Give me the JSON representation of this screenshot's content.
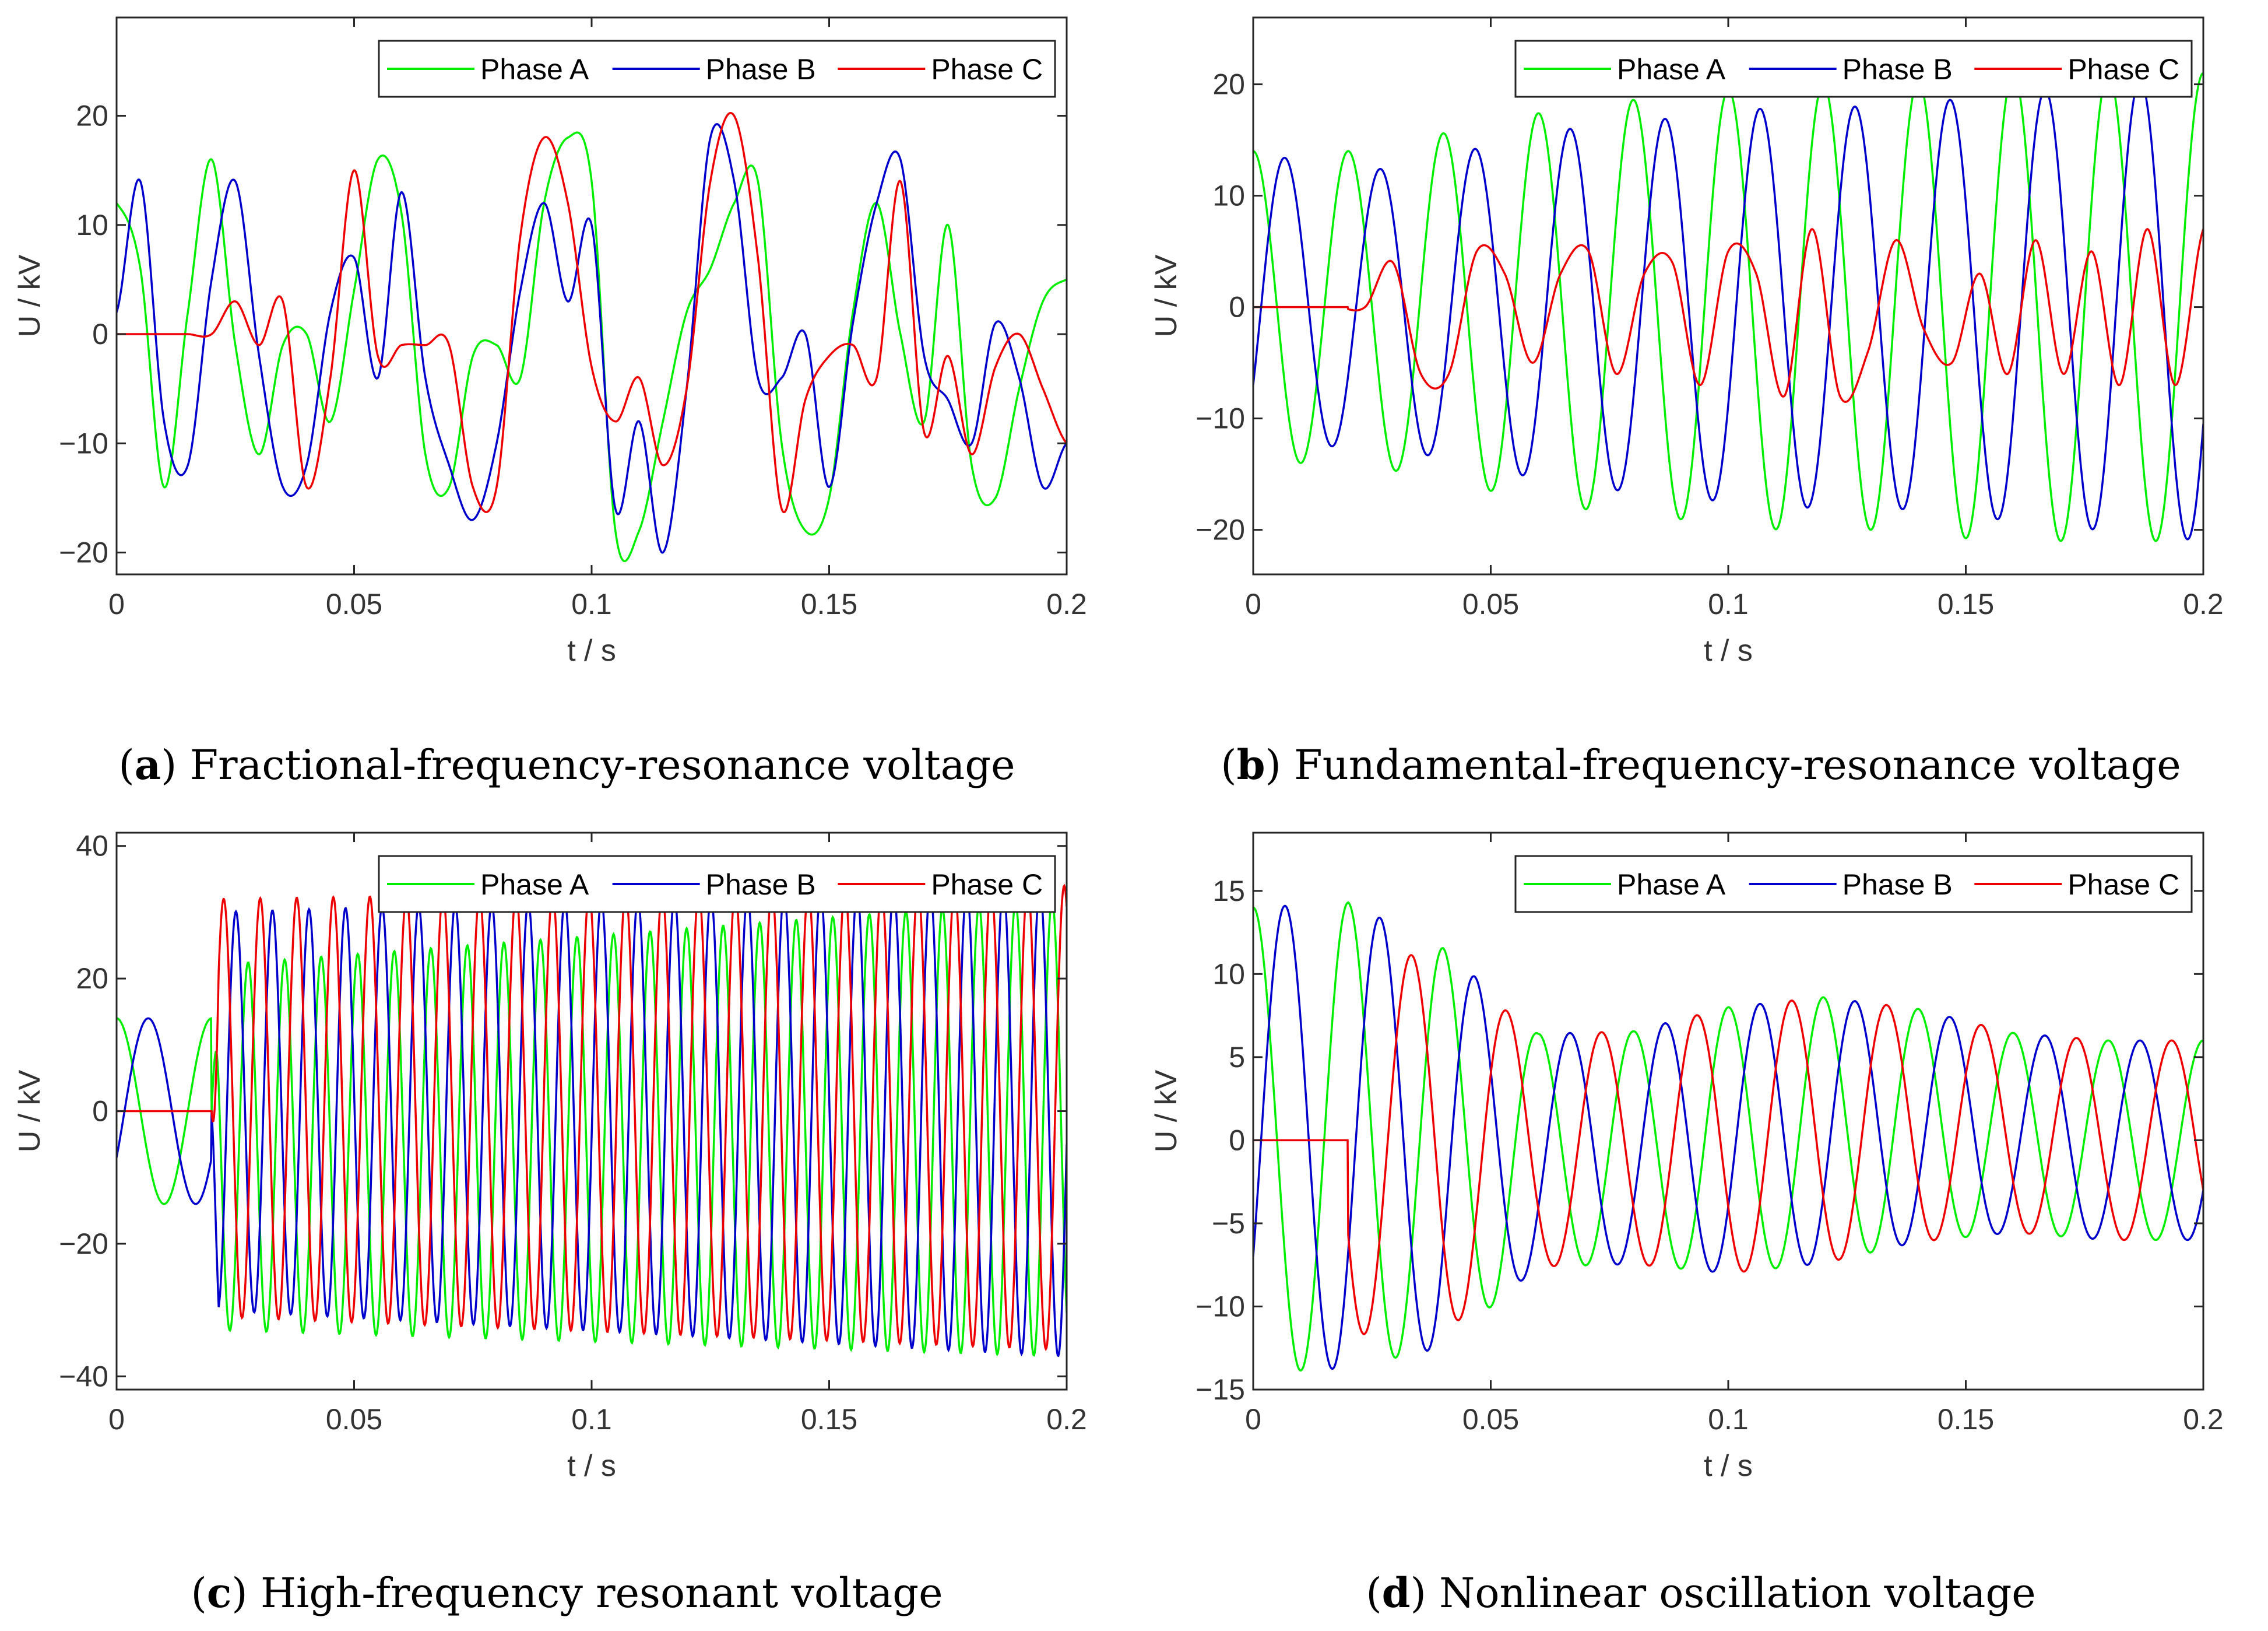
{
  "legend": [
    {
      "name": "Phase A",
      "color": "#00ee00"
    },
    {
      "name": "Phase B",
      "color": "#0000cc"
    },
    {
      "name": "Phase C",
      "color": "#ee0000"
    }
  ],
  "chart_data": [
    {
      "type": "line",
      "panel_label": "a",
      "title": "Fractional-frequency-resonance voltage",
      "xlabel": "t / s",
      "ylabel": "U / kV",
      "xlim": [
        0,
        0.2
      ],
      "ylim": [
        -22,
        29
      ],
      "xticks": [
        0,
        0.05,
        0.1,
        0.15,
        0.2
      ],
      "xtick_labels": [
        "0",
        "0.05",
        "0.1",
        "0.15",
        "0.2"
      ],
      "yticks": [
        -20,
        -10,
        0,
        10,
        20
      ],
      "ytick_labels": [
        "−20",
        "−10",
        "0",
        "10",
        "20"
      ],
      "legend_position": "top-right",
      "x": [
        0,
        0.005,
        0.01,
        0.015,
        0.02,
        0.025,
        0.03,
        0.035,
        0.04,
        0.045,
        0.05,
        0.055,
        0.06,
        0.065,
        0.07,
        0.075,
        0.08,
        0.085,
        0.09,
        0.095,
        0.1,
        0.105,
        0.11,
        0.115,
        0.12,
        0.125,
        0.13,
        0.135,
        0.14,
        0.145,
        0.15,
        0.155,
        0.16,
        0.165,
        0.17,
        0.175,
        0.18,
        0.185,
        0.19,
        0.195,
        0.2
      ],
      "series": [
        {
          "name": "Phase A",
          "values": [
            12,
            6,
            -14,
            2,
            16,
            -1,
            -11,
            -1,
            0,
            -8,
            4,
            16,
            11,
            -11,
            -14,
            -2,
            -1,
            -4,
            12,
            18,
            14,
            -18,
            -18,
            -8,
            2,
            6,
            12,
            14,
            -10,
            -18,
            -15,
            2,
            12,
            0,
            -8,
            10,
            -12,
            -15,
            -5,
            3,
            5
          ]
        },
        {
          "name": "Phase B",
          "values": [
            2,
            14,
            -8,
            -12,
            5,
            14,
            -2,
            -14,
            -12,
            2,
            7,
            -4,
            13,
            -4,
            -12,
            -17,
            -10,
            4,
            12,
            3,
            10,
            -16,
            -8,
            -20,
            -5,
            18,
            14,
            -4,
            -4,
            0,
            -14,
            1,
            12,
            16,
            -2,
            -6,
            -10,
            1,
            -4,
            -14,
            -10
          ]
        },
        {
          "name": "Phase C",
          "values": [
            0,
            0,
            0,
            0,
            0,
            3,
            -1,
            3,
            -14,
            -4,
            15,
            -2,
            -1,
            -1,
            -1,
            -14,
            -14,
            9,
            18,
            12,
            -3,
            -8,
            -4,
            -12,
            -5,
            14,
            20,
            7,
            -16,
            -6,
            -2,
            -1,
            -4,
            14,
            -9,
            -2,
            -11,
            -3,
            0,
            -5,
            -10
          ]
        }
      ]
    },
    {
      "type": "line",
      "panel_label": "b",
      "title": "Fundamental-frequency-resonance voltage",
      "xlabel": "t / s",
      "ylabel": "U / kV",
      "xlim": [
        0,
        0.2
      ],
      "ylim": [
        -24,
        26
      ],
      "xticks": [
        0,
        0.05,
        0.1,
        0.15,
        0.2
      ],
      "xtick_labels": [
        "0",
        "0.05",
        "0.1",
        "0.15",
        "0.2"
      ],
      "yticks": [
        -20,
        -10,
        0,
        10,
        20
      ],
      "ytick_labels": [
        "−20",
        "−10",
        "0",
        "10",
        "20"
      ],
      "legend_position": "top-right",
      "series": [
        {
          "name": "Phase A",
          "amplitude": [
            14,
            14,
            16,
            18,
            19,
            20,
            20,
            21,
            21,
            21
          ],
          "frequency_hz": 50,
          "phase_deg": 90
        },
        {
          "name": "Phase B",
          "amplitude": [
            14,
            12,
            14,
            16,
            17,
            18,
            18,
            19,
            20,
            21
          ],
          "frequency_hz": 50,
          "phase_deg": -30
        },
        {
          "name": "Phase C",
          "values": [
            0,
            0,
            0,
            0,
            0,
            4,
            -6,
            -6,
            5,
            3,
            -5,
            3,
            5,
            -6,
            3,
            4,
            -7,
            5,
            3,
            -8,
            7,
            -8,
            -4,
            6,
            -2,
            -5,
            3,
            -6,
            6,
            -6,
            5,
            -7,
            7,
            -7,
            7
          ]
        }
      ]
    },
    {
      "type": "line",
      "panel_label": "c",
      "title": "High-frequency resonant voltage",
      "xlabel": "t / s",
      "ylabel": "U / kV",
      "xlim": [
        0,
        0.2
      ],
      "ylim": [
        -42,
        42
      ],
      "xticks": [
        0,
        0.05,
        0.1,
        0.15,
        0.2
      ],
      "xtick_labels": [
        "0",
        "0.05",
        "0.1",
        "0.15",
        "0.2"
      ],
      "yticks": [
        -40,
        -20,
        0,
        20,
        40
      ],
      "ytick_labels": [
        "−40",
        "−20",
        "0",
        "20",
        "40"
      ],
      "legend_position": "top-right",
      "series": [
        {
          "name": "Phase A",
          "pre_switch_amplitude": 14,
          "post_switch_upper": [
            22,
            32
          ],
          "post_switch_lower": [
            -33,
            -37
          ],
          "frequency_hz": 130
        },
        {
          "name": "Phase B",
          "pre_switch_amplitude": 14,
          "post_switch_upper": [
            30,
            34
          ],
          "post_switch_lower": [
            -30,
            -37
          ],
          "frequency_hz": 130
        },
        {
          "name": "Phase C",
          "pre_switch_amplitude": 0,
          "post_switch_upper": [
            32,
            34
          ],
          "post_switch_lower": [
            -31,
            -36
          ],
          "frequency_hz": 130
        }
      ]
    },
    {
      "type": "line",
      "panel_label": "d",
      "title": "Nonlinear oscillation voltage",
      "xlabel": "t / s",
      "ylabel": "U / kV",
      "xlim": [
        0,
        0.2
      ],
      "ylim": [
        -15,
        18.5
      ],
      "xticks": [
        0,
        0.05,
        0.1,
        0.15,
        0.2
      ],
      "xtick_labels": [
        "0",
        "0.05",
        "0.1",
        "0.15",
        "0.2"
      ],
      "yticks": [
        -15,
        -10,
        -5,
        0,
        5,
        10,
        15
      ],
      "ytick_labels": [
        "−15",
        "−10",
        "−5",
        "0",
        "5",
        "10",
        "15"
      ],
      "legend_position": "top-right",
      "series": [
        {
          "name": "Phase A",
          "offset": [
            0,
            2,
            -3,
            -4,
            -3,
            0,
            4,
            6,
            3,
            0,
            0
          ],
          "amplitude": [
            14,
            14,
            12,
            7,
            7,
            8,
            8,
            7,
            6,
            6,
            6
          ]
        },
        {
          "name": "Phase B",
          "offset": [
            0,
            2,
            -3,
            -4,
            -3,
            0,
            4,
            6,
            3,
            0,
            0
          ],
          "amplitude": [
            14,
            14,
            12,
            7,
            7,
            8,
            8,
            7,
            6,
            6,
            6
          ]
        },
        {
          "name": "Phase C",
          "offset": [
            0,
            2,
            -3,
            -4,
            -3,
            0,
            4,
            6,
            3,
            0,
            0
          ],
          "amplitude": [
            0,
            12,
            11,
            7,
            7,
            8,
            8,
            7,
            6,
            6,
            6
          ]
        }
      ]
    }
  ]
}
